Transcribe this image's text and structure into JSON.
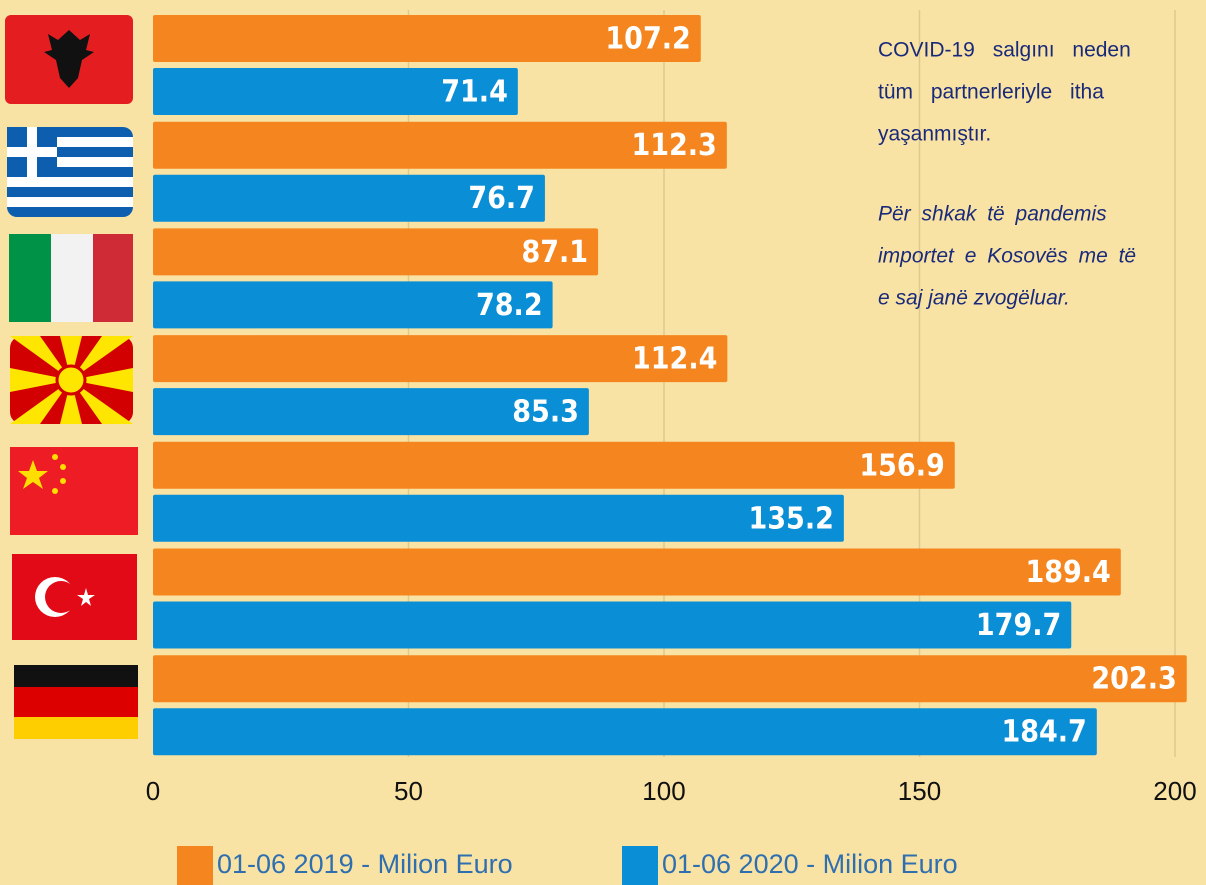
{
  "chart_data": {
    "type": "bar",
    "orientation": "horizontal",
    "categories": [
      null,
      null,
      null,
      null,
      null,
      null,
      null
    ],
    "series": [
      {
        "name": "01-06 2019 - Milion Euro",
        "color": "#f5861f",
        "values": [
          107.2,
          112.3,
          87.1,
          112.4,
          156.9,
          189.4,
          202.3
        ]
      },
      {
        "name": "01-06 2020 - Milion Euro",
        "color": "#0a8fd6",
        "values": [
          71.4,
          76.7,
          78.2,
          85.3,
          135.2,
          179.7,
          184.7
        ]
      }
    ],
    "xlim": [
      0,
      200
    ],
    "xticks": [
      0,
      50,
      100,
      150,
      200
    ],
    "grid": true,
    "legend": "bottom",
    "annotations": [
      [
        "COVID-19 salgını neden",
        "tüm partnerleriyle itha",
        "yaşanmıştır."
      ],
      [
        "Për shkak të pandemis",
        "importet e Kosovës me të",
        "e saj janë zvogëluar."
      ]
    ]
  }
}
